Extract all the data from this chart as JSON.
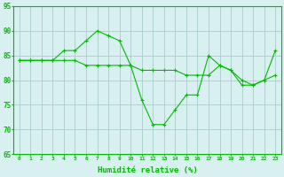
{
  "x": [
    0,
    1,
    2,
    3,
    4,
    5,
    6,
    7,
    8,
    9,
    10,
    11,
    12,
    13,
    14,
    15,
    16,
    17,
    18,
    19,
    20,
    21,
    22,
    23
  ],
  "line1": [
    84,
    84,
    84,
    84,
    86,
    86,
    88,
    90,
    89,
    88,
    83,
    76,
    71,
    71,
    74,
    77,
    77,
    85,
    83,
    82,
    79,
    79,
    80,
    86
  ],
  "line2": [
    84,
    84,
    84,
    84,
    84,
    84,
    83,
    83,
    83,
    83,
    83,
    82,
    82,
    82,
    82,
    81,
    81,
    81,
    83,
    82,
    80,
    79,
    80,
    81
  ],
  "ylim": [
    65,
    95
  ],
  "yticks": [
    65,
    70,
    75,
    80,
    85,
    90,
    95
  ],
  "xlim": [
    -0.5,
    23.5
  ],
  "xticks": [
    0,
    1,
    2,
    3,
    4,
    5,
    6,
    7,
    8,
    9,
    10,
    11,
    12,
    13,
    14,
    15,
    16,
    17,
    18,
    19,
    20,
    21,
    22,
    23
  ],
  "xlabel": "Humidité relative (%)",
  "line_color": "#00bb00",
  "bg_color": "#d8f0f0",
  "grid_color": "#aacccc",
  "marker": "+",
  "markersize": 3,
  "linewidth": 0.8
}
